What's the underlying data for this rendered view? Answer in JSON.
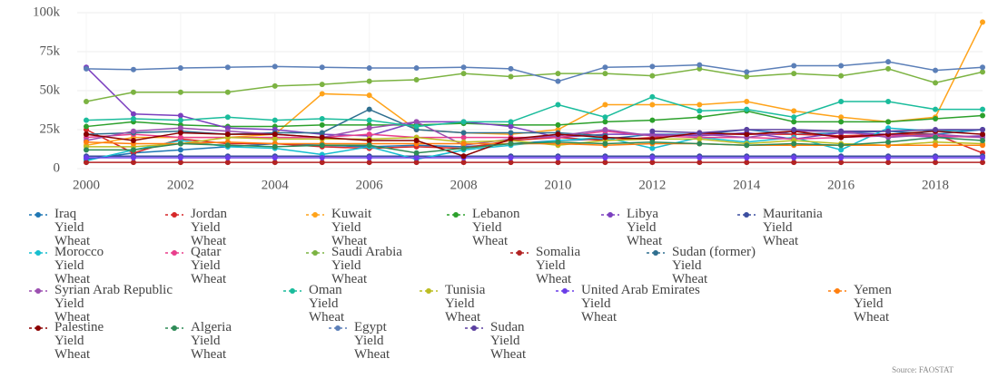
{
  "chart_data": {
    "type": "line",
    "x": [
      2000,
      2001,
      2002,
      2003,
      2004,
      2005,
      2006,
      2007,
      2008,
      2009,
      2010,
      2011,
      2012,
      2013,
      2014,
      2015,
      2016,
      2017,
      2018,
      2019
    ],
    "xlim": [
      2000,
      2019
    ],
    "xticks": [
      2000,
      2002,
      2004,
      2006,
      2008,
      2010,
      2012,
      2014,
      2016,
      2018
    ],
    "ylim": [
      0,
      100000
    ],
    "yticks": [
      0,
      {
        "value": 25000,
        "label": "25k"
      },
      {
        "value": 50000,
        "label": "50k"
      },
      {
        "value": 75000,
        "label": "75k"
      },
      {
        "value": 100000,
        "label": "100k"
      }
    ],
    "grid": true,
    "source": "Source: FAOSTAT",
    "series": [
      {
        "name": "Iraq Yield Wheat",
        "color": "#1f77b4",
        "values": [
          6000,
          10000,
          12000,
          14000,
          16000,
          15000,
          14000,
          15000,
          14000,
          16000,
          18000,
          19000,
          22000,
          22000,
          25000,
          22000,
          23000,
          24000,
          22000,
          25000
        ]
      },
      {
        "name": "Jordan Yield Wheat",
        "color": "#d62728",
        "values": [
          25000,
          10000,
          19000,
          16000,
          16000,
          14000,
          13000,
          14000,
          13000,
          18000,
          20000,
          18000,
          20000,
          22000,
          22000,
          22000,
          21000,
          22000,
          22000,
          10000
        ]
      },
      {
        "name": "Kuwait Yield Wheat",
        "color": "#ffa31a",
        "values": [
          15000,
          20000,
          20000,
          20000,
          22000,
          48000,
          47000,
          25000,
          23000,
          22000,
          25000,
          41000,
          41000,
          41000,
          43000,
          37000,
          33000,
          30000,
          33000,
          94000
        ]
      },
      {
        "name": "Lebanon Yield Wheat",
        "color": "#2ca02c",
        "values": [
          27000,
          30000,
          28000,
          27000,
          27000,
          28000,
          28000,
          28000,
          29000,
          28000,
          28000,
          30000,
          31000,
          33000,
          37000,
          30000,
          30000,
          30000,
          32000,
          34000
        ]
      },
      {
        "name": "Libya Yield Wheat",
        "color": "#7b3fbf",
        "values": [
          65000,
          35000,
          34000,
          26000,
          25000,
          22000,
          21000,
          30000,
          30000,
          27000,
          20000,
          22000,
          22000,
          21000,
          23000,
          19000,
          23000,
          22000,
          20000,
          21000
        ]
      },
      {
        "name": "Mauritania Yield Wheat",
        "color": "#3b4ea0",
        "values": [
          8000,
          8000,
          8000,
          8000,
          8000,
          8000,
          8000,
          8000,
          8000,
          8000,
          8000,
          8000,
          8000,
          8000,
          8000,
          8000,
          8000,
          8000,
          8000,
          8000
        ]
      },
      {
        "name": "Morocco Yield Wheat",
        "color": "#17becf",
        "values": [
          5000,
          12000,
          18000,
          14000,
          13000,
          9000,
          14000,
          6000,
          12000,
          15000,
          18000,
          20000,
          13000,
          20000,
          17000,
          20000,
          12000,
          26000,
          24000,
          25000
        ]
      },
      {
        "name": "Qatar Yield Wheat",
        "color": "#e83e8c",
        "values": [
          20000,
          22000,
          20000,
          20000,
          20000,
          20000,
          22000,
          20000,
          20000,
          20000,
          20000,
          24000,
          21000,
          20000,
          20000,
          19000,
          20000,
          21000,
          21000,
          20000
        ]
      },
      {
        "name": "Saudi Arabia Yield Wheat",
        "color": "#7cb342",
        "values": [
          43000,
          49000,
          49000,
          49000,
          53000,
          54000,
          56000,
          57000,
          61000,
          59000,
          61000,
          61000,
          59500,
          64000,
          59000,
          61000,
          59500,
          64000,
          55000,
          62000
        ]
      },
      {
        "name": "Somalia Yield Wheat",
        "color": "#b22222",
        "values": [
          4000,
          4000,
          4000,
          4000,
          4000,
          4000,
          4000,
          4000,
          4000,
          4000,
          4000,
          4000,
          4000,
          4000,
          4000,
          4000,
          4000,
          4000,
          4000,
          4000
        ]
      },
      {
        "name": "Sudan (former) Yield Wheat",
        "color": "#2f6f8f",
        "values": [
          22000,
          23000,
          24000,
          22000,
          23000,
          23000,
          38000,
          25000,
          23000,
          23000,
          23000,
          21000,
          null,
          null,
          null,
          null,
          null,
          null,
          null,
          null
        ]
      },
      {
        "name": "Syrian Arab Republic Yield Wheat",
        "color": "#9b4fb0",
        "values": [
          18000,
          24000,
          26000,
          24000,
          22000,
          20000,
          26000,
          30000,
          15000,
          19000,
          21000,
          25000,
          21000,
          22000,
          20000,
          24000,
          24000,
          20000,
          22000,
          20000
        ]
      },
      {
        "name": "Oman Yield Wheat",
        "color": "#1abc9c",
        "values": [
          31000,
          32000,
          31000,
          33000,
          31000,
          32000,
          31000,
          27000,
          30000,
          30000,
          41000,
          33000,
          46000,
          37000,
          38000,
          33000,
          43000,
          43000,
          38000,
          38000
        ]
      },
      {
        "name": "Tunisia Yield Wheat",
        "color": "#bcbd22",
        "values": [
          14000,
          14000,
          16000,
          20000,
          19000,
          19000,
          19000,
          20000,
          17000,
          18000,
          15000,
          18000,
          19000,
          19000,
          16000,
          18000,
          16000,
          15000,
          17000,
          16000
        ]
      },
      {
        "name": "United Arab Emirates Yield Wheat",
        "color": "#6a3de8",
        "values": [
          7000,
          7000,
          7000,
          7000,
          7000,
          7000,
          7000,
          7000,
          7000,
          7000,
          7000,
          7000,
          7000,
          7000,
          7000,
          7000,
          7000,
          7000,
          7000,
          7000
        ]
      },
      {
        "name": "Yemen Yield Wheat",
        "color": "#ff7f0e",
        "values": [
          17000,
          16000,
          16000,
          17000,
          16000,
          16000,
          16000,
          16000,
          16000,
          16000,
          16000,
          15000,
          16000,
          16000,
          15000,
          15000,
          15000,
          15000,
          15000,
          15000
        ]
      },
      {
        "name": "Palestine Yield Wheat",
        "color": "#8b0000",
        "values": [
          22000,
          18000,
          23000,
          22000,
          22000,
          20000,
          18000,
          18000,
          8000,
          19000,
          22000,
          20000,
          19000,
          23000,
          22000,
          24000,
          20000,
          22000,
          24000,
          22000
        ]
      },
      {
        "name": "Algeria Yield Wheat",
        "color": "#2e8b57",
        "values": [
          12000,
          12000,
          16000,
          15000,
          14000,
          15000,
          15000,
          10000,
          13000,
          16000,
          17000,
          16000,
          17000,
          16000,
          15000,
          16000,
          15000,
          17000,
          20000,
          18000
        ]
      },
      {
        "name": "Egypt Yield Wheat",
        "color": "#5b7fb8",
        "values": [
          64000,
          63500,
          64500,
          65000,
          65500,
          65000,
          64500,
          64500,
          65000,
          64000,
          56000,
          65000,
          65500,
          66500,
          62000,
          66000,
          66000,
          68500,
          63000,
          65000
        ]
      },
      {
        "name": "Sudan Yield Wheat",
        "color": "#5b3fa0",
        "values": [
          null,
          null,
          null,
          null,
          null,
          null,
          null,
          null,
          null,
          null,
          null,
          null,
          24000,
          23000,
          25000,
          25000,
          24000,
          24000,
          25000,
          25000
        ]
      }
    ]
  }
}
